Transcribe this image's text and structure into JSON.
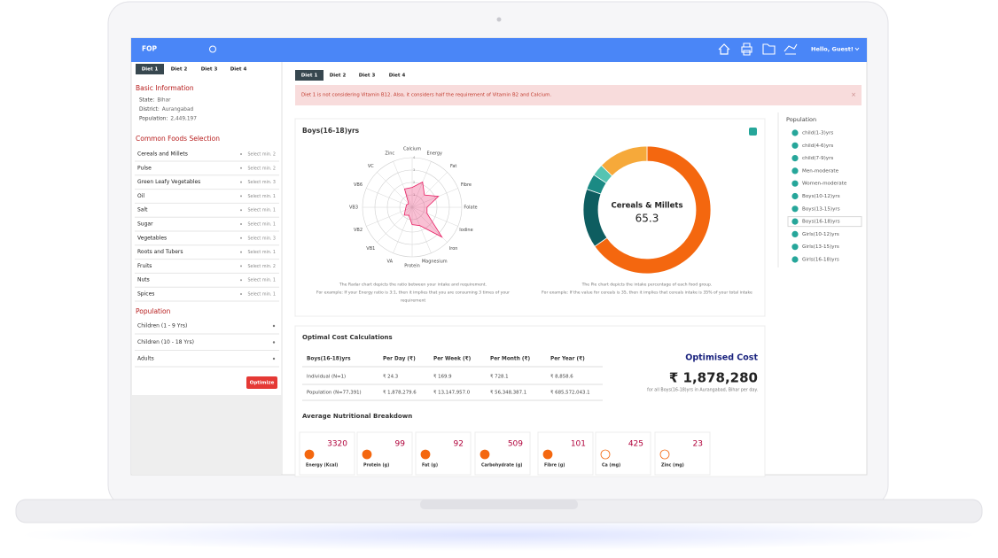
{
  "header": {
    "title": "FOP",
    "greeting": "Hello, Guest!"
  },
  "sidebar": {
    "tabs": [
      "Diet 1",
      "Diet 2",
      "Diet 3",
      "Diet 4"
    ],
    "basic_information": {
      "title": "Basic Information",
      "rows": [
        [
          "State:",
          "Bihar"
        ],
        [
          "District:",
          "Aurangabad"
        ],
        [
          "Population:",
          "2,449,197"
        ]
      ]
    },
    "common_foods": {
      "title": "Common Foods Selection",
      "items": [
        {
          "name": "Cereals and Millets",
          "hint": "Select min. 2"
        },
        {
          "name": "Pulse",
          "hint": "Select min. 2"
        },
        {
          "name": "Green Leafy Vegetables",
          "hint": "Select min. 3"
        },
        {
          "name": "Oil",
          "hint": "Select min. 1"
        },
        {
          "name": "Salt",
          "hint": "Select min. 1"
        },
        {
          "name": "Sugar",
          "hint": "Select min. 1"
        },
        {
          "name": "Vegetables",
          "hint": "Select min. 3"
        },
        {
          "name": "Roots and Tubers",
          "hint": "Select min. 1"
        },
        {
          "name": "Fruits",
          "hint": "Select min. 2"
        },
        {
          "name": "Nuts",
          "hint": "Select min. 1"
        },
        {
          "name": "Spices",
          "hint": "Select min. 1"
        }
      ]
    },
    "population": {
      "title": "Population",
      "items": [
        "Children (1 - 9 Yrs)",
        "Children (10 - 18 Yrs)",
        "Adults"
      ]
    },
    "button": "Optimize"
  },
  "main": {
    "tabs": [
      "Diet 1",
      "Diet 2",
      "Diet 3",
      "Diet 4"
    ],
    "alert": "Diet 1 is not considering Vitamin B12. Also, it considers half the requirement of Vitamin B2 and Calcium.",
    "chart_card": {
      "title": "Boys(16-18)yrs",
      "radar_caption": [
        "The Radar chart depicts the ratio between your intake and requirement.",
        "For example: If your Energy ratio is 3:1, then it implies that you are consuming 3 times of your",
        "requirement"
      ],
      "pie_caption": [
        "The Pie chart depicts the intake percentage of each food group.",
        "For example: If the value for cereals is 35, then it implies that cereals intake is 35% of your total intake"
      ]
    },
    "cost": {
      "title": "Optimal Cost Calculations",
      "table": {
        "header": [
          "Boys(16-18)yrs",
          "Per Day (₹)",
          "Per Week (₹)",
          "Per Month (₹)",
          "Per Year (₹)"
        ],
        "rows": [
          [
            "Individual (N=1)",
            "₹ 24.3",
            "₹ 169.9",
            "₹ 728.1",
            "₹ 8,858.6"
          ],
          [
            "Population (N=77,391)",
            "₹ 1,878,279.6",
            "₹ 13,147,957.0",
            "₹ 56,348,387.1",
            "₹ 685,572,043.1"
          ]
        ]
      },
      "optimised_title": "Optimised Cost",
      "optimised_value": "₹ 1,878,280",
      "optimised_note": "for all Boys(16-18)yrs in Aurangabad, Bihar per day."
    },
    "nutrition": {
      "title": "Average Nutritional Breakdown",
      "cards": [
        {
          "value": "3320",
          "label": "Energy (Kcal)"
        },
        {
          "value": "99",
          "label": "Protein (g)"
        },
        {
          "value": "92",
          "label": "Fat (g)"
        },
        {
          "value": "509",
          "label": "Carbohydrate (g)"
        },
        {
          "value": "101",
          "label": "Fibre (g)"
        },
        {
          "value": "425",
          "label": "Ca (mg)"
        },
        {
          "value": "23",
          "label": "Zinc (mg)"
        }
      ]
    }
  },
  "population_panel": {
    "title": "Population",
    "items": [
      "child(1-3)yrs",
      "child(4-6)yrs",
      "child(7-9)yrs",
      "Men-moderate",
      "Women-moderate",
      "Boys(10-12)yrs",
      "Boys(13-15)yrs",
      "Boys(16-18)yrs",
      "Girls(10-12)yrs",
      "Girls(13-15)yrs",
      "Girls(16-18)yrs"
    ],
    "selected": 7
  },
  "chart_data": [
    {
      "type": "radar",
      "categories": [
        "Calcium",
        "Energy",
        "Fat",
        "Fibre",
        "Folate",
        "Iodine",
        "Iron",
        "Magnesium",
        "Protein",
        "VA",
        "VB1",
        "VB2",
        "VB3",
        "VB6",
        "VC",
        "Zinc"
      ],
      "values": [
        1.6,
        2.2,
        1.4,
        2.3,
        1.2,
        1.3,
        3.4,
        1.6,
        1.4,
        0.7,
        0.9,
        0.6,
        0.5,
        0.5,
        0.4,
        1.6
      ],
      "color": "#e91e63",
      "rlim": [
        0,
        4
      ],
      "rticks": [
        1,
        2,
        3,
        4
      ]
    },
    {
      "type": "pie",
      "categories": [
        "Cereals & Millets",
        null,
        null,
        null,
        null
      ],
      "values": [
        65.3,
        15,
        4,
        3,
        12.7
      ],
      "colors": [
        "#f4670f",
        "#0e5d60",
        "#1b8a84",
        "#55c4b2",
        "#f6a93a"
      ]
    }
  ]
}
